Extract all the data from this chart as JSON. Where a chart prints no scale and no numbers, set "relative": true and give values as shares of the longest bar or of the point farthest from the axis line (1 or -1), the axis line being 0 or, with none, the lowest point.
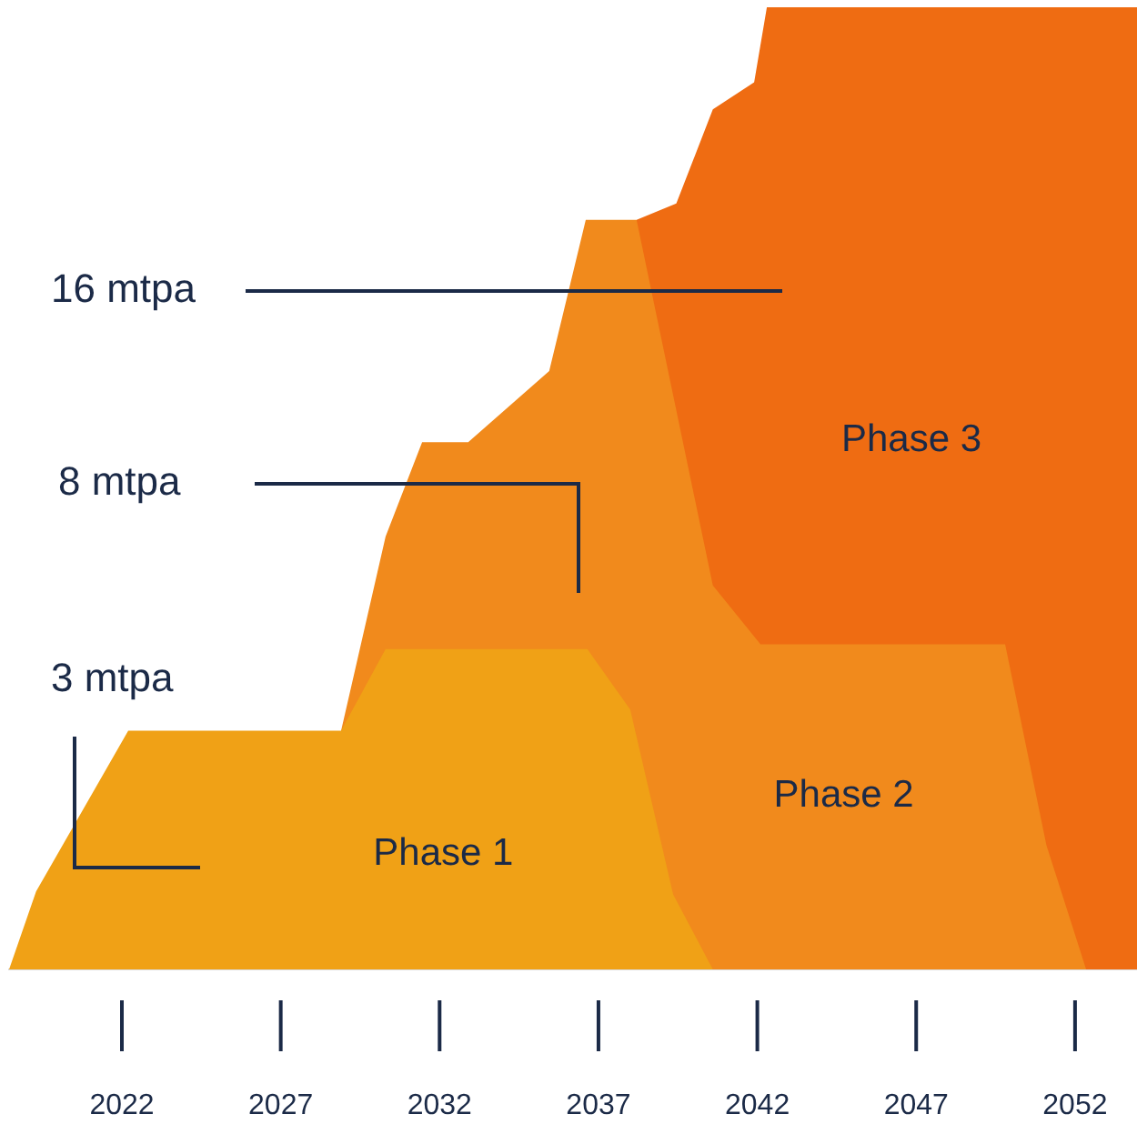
{
  "chart_data": {
    "type": "area",
    "relative": true,
    "xlim": [
      2018.45,
      2053.95
    ],
    "xticks": [
      2022,
      2027,
      2032,
      2037,
      2042,
      2047,
      2052
    ],
    "grid": false,
    "legend": false,
    "series": [
      {
        "name": "Phase 1",
        "color": "#f0a116",
        "x": [
          2018.45,
          2019.3,
          2022.2,
          2028.9,
          2030.3,
          2036.65,
          2038.0,
          2039.35,
          2040.6
        ],
        "values": [
          0,
          0.081,
          0.248,
          0.248,
          0.333,
          0.333,
          0.27,
          0.078,
          0
        ]
      },
      {
        "name": "Phase 2",
        "color": "#f18a1c",
        "x": [
          2028.9,
          2030.3,
          2031.45,
          2032.9,
          2035.45,
          2036.6,
          2038.2,
          2040.6,
          2042.1,
          2049.8,
          2051.1,
          2052.35
        ],
        "values": [
          0.248,
          0.45,
          0.548,
          0.548,
          0.622,
          0.779,
          0.779,
          0.399,
          0.338,
          0.338,
          0.129,
          0
        ]
      },
      {
        "name": "Phase 3",
        "color": "#ef6c12",
        "x": [
          2038.2,
          2039.45,
          2040.6,
          2041.9,
          2042.3,
          2053.95
        ],
        "values": [
          0.779,
          0.796,
          0.894,
          0.922,
          1,
          1
        ]
      }
    ],
    "annotations": [
      "16 mtpa",
      "8 mtpa",
      "3 mtpa"
    ]
  }
}
